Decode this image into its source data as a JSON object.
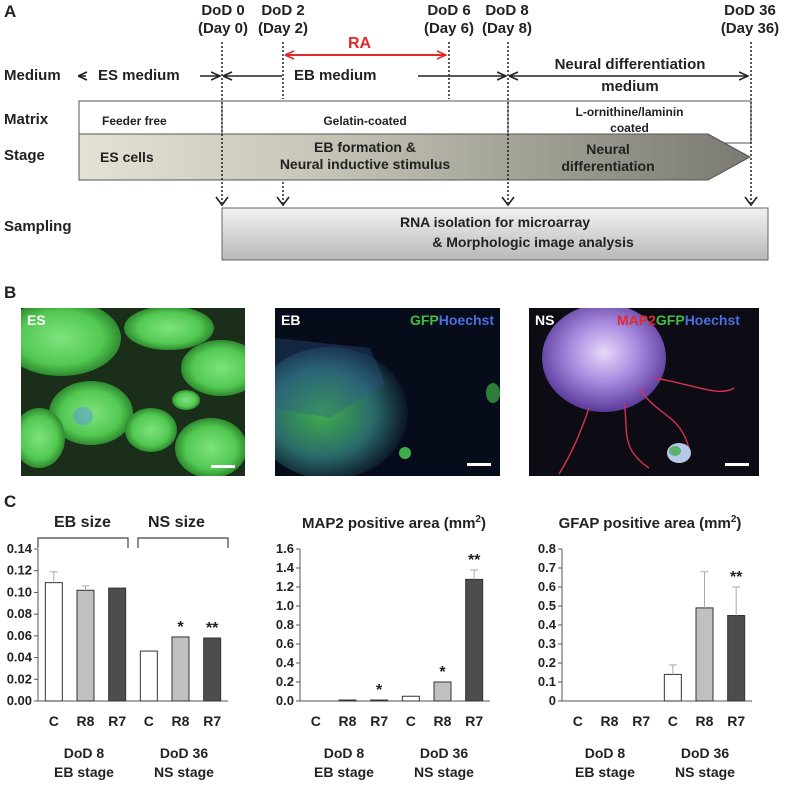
{
  "panel_labels": {
    "a": "A",
    "b": "B",
    "c": "C"
  },
  "timeline": {
    "dod": [
      {
        "l1": "DoD 0",
        "l2": "(Day 0)"
      },
      {
        "l1": "DoD 2",
        "l2": "(Day 2)"
      },
      {
        "l1": "DoD 6",
        "l2": "(Day 6)"
      },
      {
        "l1": "DoD 8",
        "l2": "(Day 8)"
      },
      {
        "l1": "DoD 36",
        "l2": "(Day 36)"
      }
    ],
    "ra": "RA",
    "rows": {
      "medium": "Medium",
      "matrix": "Matrix",
      "stage": "Stage",
      "sampling": "Sampling"
    },
    "medium": {
      "es": "ES medium",
      "eb": "EB medium",
      "nd1": "Neural differentiation",
      "nd2": "medium"
    },
    "matrix": {
      "feeder": "Feeder free",
      "gelatin": "Gelatin-coated",
      "lo1": "L-ornithine/laminin",
      "lo2": "coated"
    },
    "stage": {
      "es": "ES cells",
      "eb1": "EB formation &",
      "eb2": "Neural inductive stimulus",
      "nd1": "Neural",
      "nd2": "differentiation"
    },
    "sampling": {
      "l1": "RNA isolation for microarray",
      "l2": "& Morphologic image analysis"
    }
  },
  "images": [
    {
      "label": "ES"
    },
    {
      "label": "EB",
      "stain": [
        {
          "text": "GFP",
          "color": "#3fbf3f"
        },
        {
          "text": "Hoechst",
          "color": "#4a6fe0"
        }
      ]
    },
    {
      "label": "NS",
      "stain": [
        {
          "text": "MAP2",
          "color": "#e02b2b"
        },
        {
          "text": "GFP",
          "color": "#3fbf3f"
        },
        {
          "text": "Hoechst",
          "color": "#4a6fe0"
        }
      ]
    }
  ],
  "colors": {
    "C": "#ffffff",
    "R8": "#c0c0c0",
    "R7": "#4d4d4d",
    "ra": "#e02b2b"
  },
  "groups": {
    "g1a": "DoD 8",
    "g1b": "EB stage",
    "g2a": "DoD 36",
    "g2b": "NS stage"
  },
  "chart_data": [
    {
      "type": "bar",
      "title": "",
      "header_labels": [
        "EB size",
        "NS size"
      ],
      "categories": [
        "C",
        "R8",
        "R7",
        "C",
        "R8",
        "R7"
      ],
      "values": [
        0.109,
        0.102,
        0.104,
        0.046,
        0.059,
        0.058
      ],
      "errors": [
        0.01,
        0.004,
        0.0,
        0.0,
        0.0,
        0.0
      ],
      "significance": [
        "",
        "",
        "",
        "",
        "*",
        "**"
      ],
      "ylim": [
        0,
        0.14
      ],
      "yticks": [
        "0.00",
        "0.02",
        "0.04",
        "0.06",
        "0.08",
        "0.10",
        "0.12",
        "0.14"
      ]
    },
    {
      "type": "bar",
      "title": "MAP2 positive area (mm",
      "title_sup": "2",
      "title_end": ")",
      "categories": [
        "C",
        "R8",
        "R7",
        "C",
        "R8",
        "R7"
      ],
      "values": [
        0.0,
        0.01,
        0.01,
        0.05,
        0.2,
        1.28
      ],
      "errors": [
        0.0,
        0.0,
        0.0,
        0.0,
        0.0,
        0.1
      ],
      "significance": [
        "",
        "",
        "*",
        "",
        "*",
        "**"
      ],
      "ylim": [
        0,
        1.6
      ],
      "yticks": [
        "0.0",
        "0.2",
        "0.4",
        "0.6",
        "0.8",
        "1.0",
        "1.2",
        "1.4",
        "1.6"
      ]
    },
    {
      "type": "bar",
      "title": "GFAP positive area (mm",
      "title_sup": "2",
      "title_end": ")",
      "categories": [
        "C",
        "R8",
        "R7",
        "C",
        "R8",
        "R7"
      ],
      "values": [
        0.0,
        0.0,
        0.0,
        0.14,
        0.49,
        0.45
      ],
      "errors": [
        0.0,
        0.0,
        0.0,
        0.05,
        0.19,
        0.15
      ],
      "significance": [
        "",
        "",
        "",
        "",
        "",
        "**"
      ],
      "ylim": [
        0,
        0.8
      ],
      "yticks": [
        "0",
        "0.1",
        "0.2",
        "0.3",
        "0.4",
        "0.5",
        "0.6",
        "0.7",
        "0.8"
      ]
    }
  ]
}
